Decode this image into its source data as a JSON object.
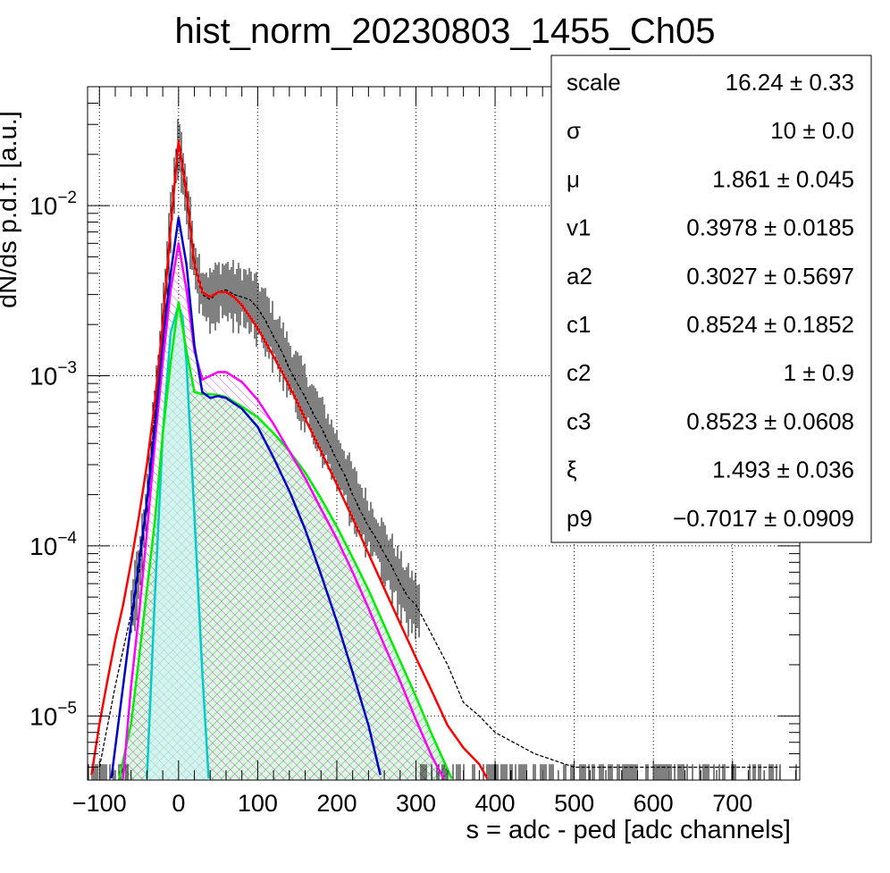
{
  "chart_data": {
    "type": "line",
    "title": "hist_norm_20230803_1455_Ch05",
    "xlabel": "s = adc - ped [adc channels]",
    "ylabel": "dN/ds p.d.f. [a.u.]",
    "xlim": [
      -115,
      785
    ],
    "ylim": [
      4.2e-06,
      0.05
    ],
    "yscale": "log",
    "grid": true,
    "x_ticks": [
      -100,
      0,
      100,
      200,
      300,
      400,
      500,
      600,
      700
    ],
    "x_tick_labels": [
      "−100",
      "0",
      "100",
      "200",
      "300",
      "400",
      "500",
      "600",
      "700"
    ],
    "y_ticks": [
      {
        "value": 0.01,
        "base": "10",
        "exp": "−2"
      },
      {
        "value": 0.001,
        "base": "10",
        "exp": "−3"
      },
      {
        "value": 0.0001,
        "base": "10",
        "exp": "−4"
      },
      {
        "value": 1e-05,
        "base": "10",
        "exp": "−5"
      }
    ],
    "legend_position": "top-right",
    "fit_parameters": [
      {
        "name": "scale",
        "value": "16.24 ± 0.33"
      },
      {
        "name": "σ",
        "value": "10 ± 0.0"
      },
      {
        "name": "μ",
        "value": "1.861 ± 0.045"
      },
      {
        "name": "v1",
        "value": "0.3978 ± 0.0185"
      },
      {
        "name": "a2",
        "value": "0.3027 ± 0.5697"
      },
      {
        "name": "c1",
        "value": "0.8524 ± 0.1852"
      },
      {
        "name": "c2",
        "value": "1 ± 0.9"
      },
      {
        "name": "c3",
        "value": "0.8523 ± 0.0608"
      },
      {
        "name": "ξ",
        "value": "1.493 ± 0.036"
      },
      {
        "name": "p9",
        "value": "−0.7017 ± 0.0909"
      }
    ],
    "histogram": {
      "color": "#000000",
      "x": [
        -100,
        -80,
        -60,
        -50,
        -40,
        -30,
        -20,
        -10,
        0,
        10,
        20,
        30,
        40,
        50,
        60,
        70,
        80,
        90,
        100,
        110,
        120,
        130,
        140,
        150,
        160,
        170,
        180,
        190,
        200,
        210,
        220,
        230,
        240,
        250,
        260,
        270,
        280,
        290,
        300,
        320,
        340,
        360,
        380,
        400,
        450,
        500,
        550,
        600,
        650,
        700,
        760
      ],
      "y": [
        5e-06,
        1.5e-05,
        4e-05,
        7e-05,
        0.00018,
        0.0006,
        0.002,
        0.008,
        0.024,
        0.011,
        0.0045,
        0.003,
        0.0028,
        0.0031,
        0.0032,
        0.003,
        0.0029,
        0.0028,
        0.0025,
        0.0021,
        0.0017,
        0.0014,
        0.0011,
        0.0009,
        0.00075,
        0.0006,
        0.0005,
        0.0004,
        0.00032,
        0.00026,
        0.0002,
        0.00016,
        0.00013,
        0.00011,
        9e-05,
        7.5e-05,
        6e-05,
        5e-05,
        4.5e-05,
        3e-05,
        2e-05,
        1.2e-05,
        1e-05,
        8e-06,
        6e-06,
        5e-06,
        5e-06,
        5e-06,
        5e-06,
        5e-06,
        5e-06
      ]
    },
    "series": [
      {
        "color": "#ff0000",
        "x": [
          -110,
          -100,
          -90,
          -80,
          -70,
          -60,
          -50,
          -40,
          -30,
          -20,
          -10,
          0,
          10,
          20,
          30,
          40,
          50,
          60,
          70,
          80,
          100,
          120,
          140,
          160,
          180,
          200,
          220,
          240,
          260,
          280,
          300,
          320,
          340,
          360,
          380,
          390
        ],
        "y": [
          4.5e-06,
          9e-06,
          1.6e-05,
          2.8e-05,
          4.5e-05,
          8e-05,
          0.00015,
          0.0003,
          0.0007,
          0.002,
          0.0075,
          0.024,
          0.012,
          0.0045,
          0.0031,
          0.0029,
          0.0031,
          0.0031,
          0.0029,
          0.0026,
          0.0019,
          0.0013,
          0.00087,
          0.00056,
          0.00036,
          0.00023,
          0.000145,
          9e-05,
          5.6e-05,
          3.5e-05,
          2.2e-05,
          1.4e-05,
          8.8e-06,
          6.5e-06,
          5.2e-06,
          4.3e-06
        ]
      },
      {
        "color": "#0000cc",
        "x": [
          -85,
          -60,
          -50,
          -40,
          -30,
          -20,
          -10,
          0,
          10,
          20,
          30,
          40,
          50,
          60,
          80,
          100,
          120,
          140,
          160,
          180,
          200,
          220,
          240,
          255
        ],
        "y": [
          4.3e-06,
          3.5e-05,
          8e-05,
          0.00018,
          0.0005,
          0.0016,
          0.004,
          0.0085,
          0.0045,
          0.0015,
          0.0008,
          0.00074,
          0.00076,
          0.00074,
          0.00064,
          0.0005,
          0.00033,
          0.00021,
          0.000125,
          6.8e-05,
          3.6e-05,
          1.8e-05,
          8.8e-06,
          4.5e-06
        ]
      },
      {
        "color": "#ff00ff",
        "x": [
          -70,
          -60,
          -50,
          -40,
          -30,
          -20,
          -10,
          0,
          10,
          20,
          30,
          40,
          50,
          60,
          80,
          100,
          120,
          140,
          160,
          180,
          200,
          220,
          240,
          260,
          280,
          300,
          320,
          335
        ],
        "y": [
          4.3e-06,
          1.5e-05,
          4e-05,
          0.00012,
          0.0004,
          0.0012,
          0.0032,
          0.006,
          0.0032,
          0.0014,
          0.00095,
          0.001,
          0.00105,
          0.00105,
          0.00092,
          0.00072,
          0.00052,
          0.00036,
          0.00025,
          0.000165,
          0.00011,
          7e-05,
          4.3e-05,
          2.6e-05,
          1.6e-05,
          9.5e-06,
          5.8e-06,
          4.3e-06
        ]
      },
      {
        "color": "#00ee00",
        "x": [
          -75,
          -60,
          -50,
          -40,
          -30,
          -20,
          -10,
          0,
          10,
          20,
          30,
          40,
          50,
          60,
          80,
          100,
          120,
          140,
          160,
          180,
          200,
          220,
          240,
          260,
          280,
          300,
          320,
          345
        ],
        "y": [
          4.3e-06,
          9e-06,
          2.2e-05,
          5.5e-05,
          0.00014,
          0.00045,
          0.0012,
          0.0027,
          0.0014,
          0.0008,
          0.00078,
          0.00078,
          0.00077,
          0.00075,
          0.00066,
          0.00057,
          0.00046,
          0.00036,
          0.00027,
          0.00019,
          0.00013,
          8.5e-05,
          5.5e-05,
          3.4e-05,
          2.1e-05,
          1.3e-05,
          7.8e-06,
          4.3e-06
        ]
      },
      {
        "color": "#00cccc",
        "x": [
          -40,
          -30,
          -20,
          -10,
          0,
          5,
          10,
          20,
          30,
          38
        ],
        "y": [
          4.3e-06,
          5e-05,
          0.00045,
          0.0018,
          0.0026,
          0.0022,
          0.0012,
          0.00015,
          1.8e-05,
          4.3e-06
        ]
      }
    ]
  }
}
